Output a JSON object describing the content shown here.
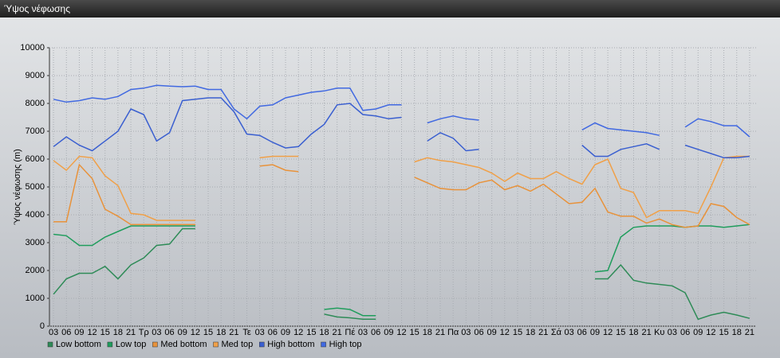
{
  "chart_data": {
    "type": "line",
    "title": "Ύψος νέφωσης",
    "y_label": "Ύψος νέφωσης (m)",
    "categories": [
      "03",
      "06",
      "09",
      "12",
      "15",
      "18",
      "21",
      "Τρ",
      "03",
      "06",
      "09",
      "12",
      "15",
      "18",
      "21",
      "Τε",
      "03",
      "06",
      "09",
      "12",
      "15",
      "18",
      "21",
      "Πέ",
      "03",
      "06",
      "09",
      "12",
      "15",
      "18",
      "21",
      "Πα",
      "03",
      "06",
      "09",
      "12",
      "15",
      "18",
      "21",
      "Σά",
      "03",
      "06",
      "09",
      "12",
      "15",
      "18",
      "21",
      "Κυ",
      "03",
      "06",
      "09",
      "12",
      "15",
      "18",
      "21"
    ],
    "ylim": [
      0,
      10000
    ],
    "yticks": [
      0,
      1000,
      2000,
      3000,
      4000,
      5000,
      6000,
      7000,
      8000,
      9000,
      10000
    ],
    "grid": true,
    "legend": "bottom",
    "series": [
      {
        "name": "Low bottom",
        "color": "#2e8b57",
        "values": [
          1150,
          1700,
          1900,
          1900,
          2150,
          1700,
          2200,
          2450,
          2900,
          2950,
          3500,
          3500,
          null,
          null,
          null,
          null,
          null,
          null,
          null,
          null,
          null,
          430,
          330,
          300,
          250,
          250,
          null,
          null,
          null,
          null,
          null,
          null,
          null,
          null,
          null,
          null,
          null,
          null,
          null,
          null,
          null,
          null,
          1700,
          1700,
          2200,
          1650,
          1550,
          1500,
          1450,
          1200,
          250,
          400,
          500,
          400,
          280
        ]
      },
      {
        "name": "Low top",
        "color": "#1f9d5c",
        "values": [
          3300,
          3250,
          2900,
          2900,
          3200,
          3400,
          3600,
          3600,
          3600,
          3600,
          3600,
          3600,
          null,
          null,
          null,
          null,
          null,
          null,
          null,
          null,
          null,
          600,
          650,
          600,
          380,
          380,
          null,
          null,
          null,
          null,
          null,
          null,
          null,
          null,
          null,
          null,
          null,
          null,
          null,
          null,
          null,
          null,
          1950,
          2000,
          3200,
          3550,
          3600,
          3600,
          3600,
          3550,
          3600,
          3600,
          3550,
          3600,
          3650
        ]
      },
      {
        "name": "Med bottom",
        "color": "#e8923a",
        "values": [
          3750,
          3750,
          5800,
          5300,
          4200,
          3950,
          3650,
          3650,
          3650,
          3650,
          3650,
          3650,
          null,
          null,
          null,
          null,
          5750,
          5800,
          5600,
          5550,
          null,
          null,
          null,
          null,
          null,
          null,
          null,
          null,
          5350,
          5150,
          4950,
          4900,
          4900,
          5150,
          5250,
          4900,
          5050,
          4850,
          5100,
          4750,
          4400,
          4450,
          4950,
          4100,
          3950,
          3950,
          3700,
          3850,
          3650,
          3550,
          3600,
          4400,
          4300,
          3900,
          3650
        ]
      },
      {
        "name": "Med top",
        "color": "#f0a048",
        "values": [
          5950,
          5600,
          6100,
          6050,
          5400,
          5050,
          4050,
          4000,
          3800,
          3800,
          3800,
          3800,
          null,
          null,
          null,
          null,
          6050,
          6100,
          6100,
          6100,
          null,
          null,
          null,
          null,
          null,
          null,
          null,
          null,
          5900,
          6050,
          5950,
          5900,
          5800,
          5700,
          5500,
          5200,
          5500,
          5300,
          5300,
          5550,
          5300,
          5100,
          5800,
          6000,
          4950,
          4800,
          3900,
          4150,
          4150,
          4150,
          4050,
          5000,
          6050,
          6100,
          6100
        ]
      },
      {
        "name": "High bottom",
        "color": "#3a5fd0",
        "values": [
          6450,
          6800,
          6500,
          6300,
          6650,
          7000,
          7800,
          7600,
          6650,
          6950,
          8100,
          8150,
          8200,
          8200,
          7700,
          6900,
          6850,
          6600,
          6400,
          6450,
          6900,
          7250,
          7950,
          8000,
          7600,
          7550,
          7450,
          7500,
          null,
          6650,
          6950,
          6750,
          6300,
          6350,
          null,
          null,
          null,
          null,
          null,
          null,
          null,
          6500,
          6100,
          6100,
          6350,
          6450,
          6550,
          6350,
          null,
          6500,
          6350,
          6200,
          6050,
          6050,
          6100
        ]
      },
      {
        "name": "High top",
        "color": "#4169e1",
        "values": [
          8150,
          8050,
          8100,
          8200,
          8150,
          8250,
          8500,
          8550,
          8650,
          8620,
          8600,
          8620,
          8500,
          8500,
          7800,
          7450,
          7900,
          7950,
          8200,
          8300,
          8400,
          8450,
          8550,
          8550,
          7750,
          7800,
          7950,
          7950,
          null,
          7300,
          7450,
          7550,
          7450,
          7400,
          null,
          null,
          null,
          null,
          null,
          null,
          null,
          7050,
          7300,
          7100,
          7050,
          7000,
          6950,
          6850,
          null,
          7150,
          7450,
          7350,
          7200,
          7200,
          6800
        ]
      }
    ]
  }
}
